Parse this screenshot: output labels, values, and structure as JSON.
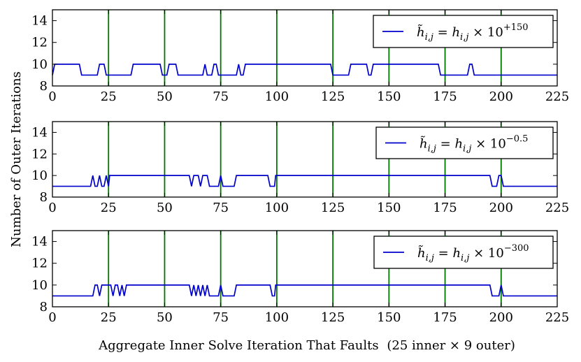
{
  "chart_data": {
    "type": "line",
    "y_axis_title": "Number of Outer Iterations",
    "x_axis_title_main": "Aggregate Inner Solve Iteration That Faults",
    "x_axis_title_note": "(25 inner × 9 outer)",
    "x_range": [
      0,
      225
    ],
    "y_range": [
      8,
      15
    ],
    "x_ticks": [
      0,
      25,
      50,
      75,
      100,
      125,
      150,
      175,
      200,
      225
    ],
    "y_ticks": [
      8,
      10,
      12,
      14
    ],
    "vertical_markers": [
      25,
      50,
      75,
      100,
      125,
      150,
      175,
      200
    ],
    "colors": {
      "series": "#0000cc",
      "markers": "#007700",
      "axes": "#000000"
    },
    "panels": [
      {
        "legend": "h̃i,j = hi,j × 10^+150",
        "legend_base": "h̃",
        "legend_sub": "i,j",
        "legend_mid": " = h",
        "legend_sub2": "i,j",
        "legend_times": " × 10",
        "legend_exp": "+150",
        "series_points": [
          [
            0,
            9
          ],
          [
            1,
            10
          ],
          [
            12,
            10
          ],
          [
            13,
            9
          ],
          [
            20,
            9
          ],
          [
            21,
            10
          ],
          [
            23,
            10
          ],
          [
            24,
            9
          ],
          [
            35,
            9
          ],
          [
            36,
            10
          ],
          [
            48,
            10
          ],
          [
            49,
            9
          ],
          [
            51,
            9
          ],
          [
            52,
            10
          ],
          [
            55,
            10
          ],
          [
            56,
            9
          ],
          [
            67,
            9
          ],
          [
            68,
            10
          ],
          [
            69,
            9
          ],
          [
            71,
            9
          ],
          [
            72,
            10
          ],
          [
            73,
            10
          ],
          [
            74,
            9
          ],
          [
            82,
            9
          ],
          [
            83,
            10
          ],
          [
            84,
            9
          ],
          [
            85,
            9
          ],
          [
            86,
            10
          ],
          [
            124,
            10
          ],
          [
            125,
            9
          ],
          [
            132,
            9
          ],
          [
            133,
            10
          ],
          [
            140,
            10
          ],
          [
            141,
            9
          ],
          [
            142,
            9
          ],
          [
            143,
            10
          ],
          [
            172,
            10
          ],
          [
            173,
            9
          ],
          [
            185,
            9
          ],
          [
            186,
            10
          ],
          [
            187,
            10
          ],
          [
            188,
            9
          ],
          [
            225,
            9
          ]
        ]
      },
      {
        "legend": "h̃i,j = hi,j × 10^-0.5",
        "legend_base": "h̃",
        "legend_sub": "i,j",
        "legend_mid": " = h",
        "legend_sub2": "i,j",
        "legend_times": " × 10",
        "legend_exp": "−0.5",
        "series_points": [
          [
            0,
            9
          ],
          [
            17,
            9
          ],
          [
            18,
            10
          ],
          [
            19,
            9
          ],
          [
            20,
            9
          ],
          [
            21,
            10
          ],
          [
            22,
            9
          ],
          [
            23,
            9
          ],
          [
            24,
            10
          ],
          [
            25,
            9
          ],
          [
            25.5,
            10
          ],
          [
            61,
            10
          ],
          [
            62,
            9
          ],
          [
            63,
            10
          ],
          [
            65,
            10
          ],
          [
            66,
            9
          ],
          [
            67,
            10
          ],
          [
            69,
            10
          ],
          [
            70,
            9
          ],
          [
            74,
            9
          ],
          [
            75,
            10
          ],
          [
            76,
            9
          ],
          [
            81,
            9
          ],
          [
            82,
            10
          ],
          [
            96,
            10
          ],
          [
            97,
            9
          ],
          [
            99,
            9
          ],
          [
            99.5,
            10
          ],
          [
            195,
            10
          ],
          [
            196,
            9
          ],
          [
            198,
            9
          ],
          [
            199,
            10
          ],
          [
            200,
            10
          ],
          [
            201,
            9
          ],
          [
            225,
            9
          ]
        ]
      },
      {
        "legend": "h̃i,j = hi,j × 10^-300",
        "legend_base": "h̃",
        "legend_sub": "i,j",
        "legend_mid": " = h",
        "legend_sub2": "i,j",
        "legend_times": " × 10",
        "legend_exp": "−300",
        "series_points": [
          [
            0,
            9
          ],
          [
            18,
            9
          ],
          [
            19,
            10
          ],
          [
            20,
            10
          ],
          [
            21,
            9
          ],
          [
            22,
            10
          ],
          [
            26,
            10
          ],
          [
            27,
            9
          ],
          [
            28,
            10
          ],
          [
            29,
            10
          ],
          [
            30,
            9
          ],
          [
            31,
            10
          ],
          [
            32,
            9
          ],
          [
            33,
            10
          ],
          [
            61,
            10
          ],
          [
            62,
            9
          ],
          [
            63,
            10
          ],
          [
            64,
            9
          ],
          [
            65,
            10
          ],
          [
            66,
            9
          ],
          [
            67,
            10
          ],
          [
            68,
            9
          ],
          [
            69,
            10
          ],
          [
            70,
            9
          ],
          [
            74,
            9
          ],
          [
            75,
            10
          ],
          [
            76,
            9
          ],
          [
            81,
            9
          ],
          [
            82,
            10
          ],
          [
            97,
            10
          ],
          [
            98,
            9
          ],
          [
            99,
            9
          ],
          [
            99.5,
            10
          ],
          [
            195,
            10
          ],
          [
            196,
            9
          ],
          [
            199,
            9
          ],
          [
            200,
            10
          ],
          [
            201,
            9
          ],
          [
            225,
            9
          ]
        ]
      }
    ]
  }
}
